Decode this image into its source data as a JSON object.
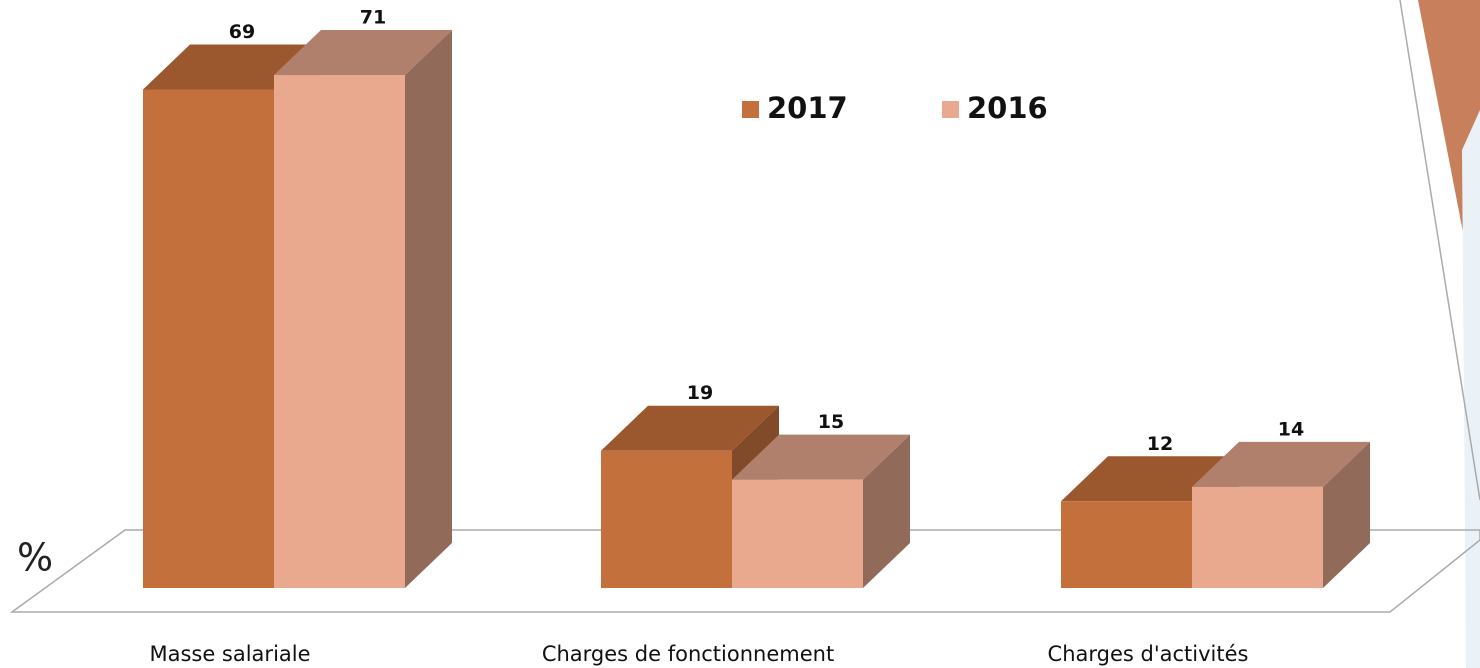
{
  "chart_data": {
    "type": "bar3d",
    "ylabel": "%",
    "categories": [
      "Masse salariale",
      "Charges de fonctionnement",
      "Charges d'activités"
    ],
    "series": [
      {
        "name": "2017",
        "color": "#c4703c",
        "values": [
          69,
          19,
          12
        ]
      },
      {
        "name": "2016",
        "color": "#e8a98f",
        "values": [
          71,
          15,
          14
        ]
      }
    ],
    "ylim": [
      0,
      80
    ]
  }
}
